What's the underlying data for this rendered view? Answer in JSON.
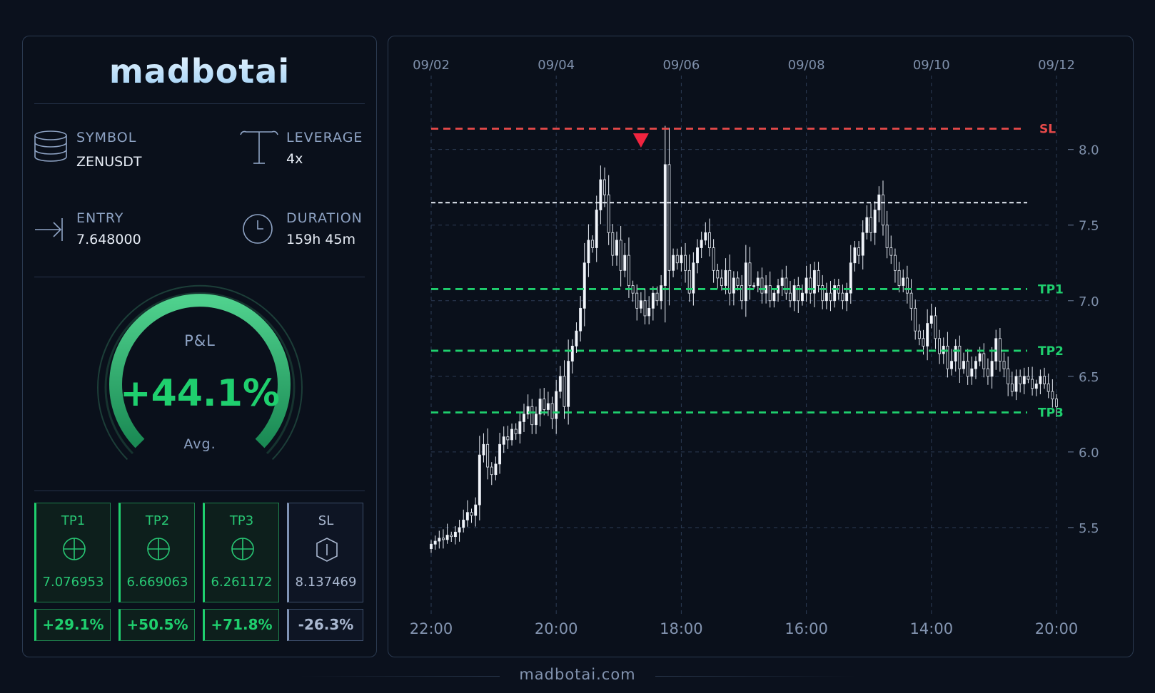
{
  "brand": {
    "logo": "madbotai",
    "footer": "madbotai.com"
  },
  "trade": {
    "symbol_label": "SYMBOL",
    "symbol": "ZENUSDT",
    "leverage_label": "LEVERAGE",
    "leverage": "4x",
    "entry_label": "ENTRY",
    "entry": "7.648000",
    "duration_label": "DURATION",
    "duration": "159h 45m"
  },
  "pnl": {
    "label": "P&L",
    "value": "+44.1%",
    "sub": "Avg.",
    "gauge_fill": 0.441
  },
  "targets": [
    {
      "name": "TP1",
      "price": "7.076953",
      "pct": "+29.1%",
      "icon": "crosshair-icon"
    },
    {
      "name": "TP2",
      "price": "6.669063",
      "pct": "+50.5%",
      "icon": "crosshair-icon"
    },
    {
      "name": "TP3",
      "price": "6.261172",
      "pct": "+71.8%",
      "icon": "crosshair-icon"
    }
  ],
  "stop": {
    "name": "SL",
    "price": "8.137469",
    "pct": "-26.3%",
    "icon": "shield-icon"
  },
  "colors": {
    "accent": "#1fcf6e",
    "sl": "#e84a4a",
    "entry": "#e6ecf5",
    "bg": "#0b111d"
  },
  "chart_data": {
    "type": "candlestick",
    "date_ticks": [
      "09/02",
      "09/04",
      "09/06",
      "09/08",
      "09/10",
      "09/12"
    ],
    "time_ticks": [
      "22:00",
      "20:00",
      "18:00",
      "16:00",
      "14:00",
      "20:00"
    ],
    "y_ticks": [
      "5.5",
      "6.0",
      "6.5",
      "7.0",
      "7.5",
      "8.0"
    ],
    "ylim": [
      5.0,
      8.3
    ],
    "levels": [
      {
        "name": "SL",
        "value": 8.137469,
        "color": "#e84a4a"
      },
      {
        "name": "",
        "value": 7.648,
        "color": "#e6ecf5"
      },
      {
        "name": "TP1",
        "value": 7.076953,
        "color": "#1fcf6e"
      },
      {
        "name": "TP2",
        "value": 6.669063,
        "color": "#1fcf6e"
      },
      {
        "name": "TP3",
        "value": 6.261172,
        "color": "#1fcf6e"
      }
    ],
    "entry_marker": {
      "index": 52,
      "value": 8.05
    },
    "grid": true,
    "close": [
      5.39,
      5.41,
      5.43,
      5.42,
      5.45,
      5.44,
      5.47,
      5.5,
      5.55,
      5.6,
      5.58,
      5.65,
      5.98,
      6.05,
      5.9,
      5.85,
      5.92,
      6.05,
      6.1,
      6.08,
      6.15,
      6.12,
      6.2,
      6.25,
      6.3,
      6.18,
      6.25,
      6.35,
      6.28,
      6.32,
      6.22,
      6.4,
      6.5,
      6.3,
      6.6,
      6.7,
      6.8,
      6.95,
      7.25,
      7.4,
      7.35,
      7.6,
      7.8,
      7.7,
      7.45,
      7.3,
      7.4,
      7.2,
      7.3,
      7.1,
      7.05,
      6.95,
      7.0,
      6.9,
      6.95,
      7.05,
      7.0,
      7.1,
      7.9,
      7.2,
      7.3,
      7.25,
      7.3,
      7.2,
      7.05,
      7.25,
      7.35,
      7.4,
      7.45,
      7.35,
      7.2,
      7.15,
      7.1,
      7.2,
      7.05,
      7.15,
      7.1,
      7.0,
      7.25,
      7.1,
      7.1,
      7.15,
      7.05,
      7.1,
      7.0,
      7.05,
      7.1,
      7.15,
      7.05,
      7.0,
      7.1,
      7.0,
      7.05,
      7.15,
      7.05,
      7.2,
      7.1,
      7.0,
      7.05,
      7.0,
      7.1,
      7.05,
      7.0,
      7.05,
      7.25,
      7.35,
      7.3,
      7.45,
      7.55,
      7.45,
      7.6,
      7.7,
      7.5,
      7.35,
      7.3,
      7.2,
      7.1,
      7.15,
      7.05,
      6.95,
      6.8,
      6.75,
      6.7,
      6.85,
      6.9,
      6.75,
      6.65,
      6.7,
      6.55,
      6.6,
      6.7,
      6.55,
      6.6,
      6.5,
      6.55,
      6.6,
      6.65,
      6.55,
      6.5,
      6.6,
      6.75,
      6.6,
      6.55,
      6.45,
      6.4,
      6.5,
      6.45,
      6.5,
      6.48,
      6.42,
      6.45,
      6.5,
      6.45,
      6.4,
      6.35,
      6.3
    ]
  }
}
